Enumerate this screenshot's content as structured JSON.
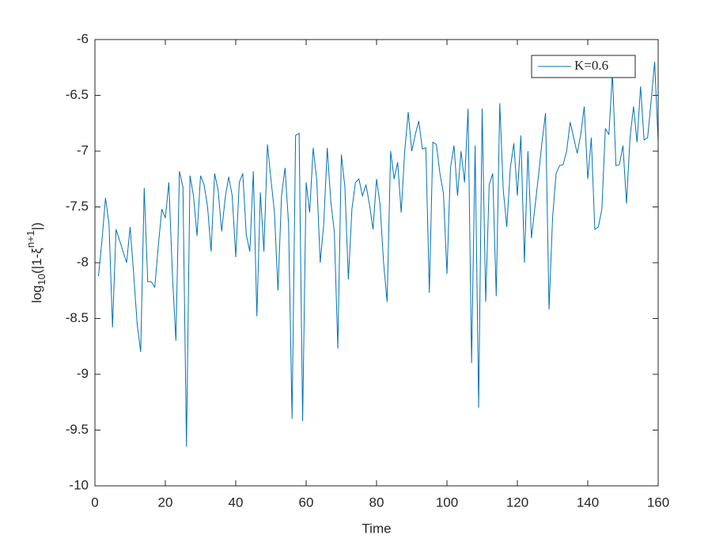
{
  "chart_data": {
    "type": "line",
    "xlabel": "Time",
    "ylabel": {
      "base": "log",
      "sub": "10",
      "main": "(|1-ξ",
      "sup": "n+1",
      "end": "|)"
    },
    "x": [
      1,
      2,
      3,
      4,
      5,
      6,
      7,
      8,
      9,
      10,
      11,
      12,
      13,
      14,
      15,
      16,
      17,
      18,
      19,
      20,
      21,
      22,
      23,
      24,
      25,
      26,
      27,
      28,
      29,
      30,
      31,
      32,
      33,
      34,
      35,
      36,
      37,
      38,
      39,
      40,
      41,
      42,
      43,
      44,
      45,
      46,
      47,
      48,
      49,
      50,
      51,
      52,
      53,
      54,
      55,
      56,
      57,
      58,
      59,
      60,
      61,
      62,
      63,
      64,
      65,
      66,
      67,
      68,
      69,
      70,
      71,
      72,
      73,
      74,
      75,
      76,
      77,
      78,
      79,
      80,
      81,
      82,
      83,
      84,
      85,
      86,
      87,
      88,
      89,
      90,
      91,
      92,
      93,
      94,
      95,
      96,
      97,
      98,
      99,
      100,
      101,
      102,
      103,
      104,
      105,
      106,
      107,
      108,
      109,
      110,
      111,
      112,
      113,
      114,
      115,
      116,
      117,
      118,
      119,
      120,
      121,
      122,
      123,
      124,
      125,
      126,
      127,
      128,
      129,
      130,
      131,
      132,
      133,
      134,
      135,
      136,
      137,
      138,
      139,
      140,
      141,
      142,
      143,
      144,
      145,
      146,
      147,
      148,
      149,
      150,
      151,
      152,
      153,
      154,
      155,
      156,
      157,
      158,
      159,
      160
    ],
    "series": [
      {
        "name": "K=0.6",
        "color": "#0072BD",
        "values": [
          -8.12,
          -7.8,
          -7.42,
          -7.65,
          -8.58,
          -7.7,
          -7.8,
          -7.9,
          -8.0,
          -7.68,
          -8.1,
          -8.55,
          -8.8,
          -7.33,
          -8.17,
          -8.17,
          -8.22,
          -7.85,
          -7.52,
          -7.6,
          -7.28,
          -8.1,
          -8.7,
          -7.18,
          -7.32,
          -9.65,
          -7.22,
          -7.4,
          -7.76,
          -7.22,
          -7.3,
          -7.5,
          -7.9,
          -7.2,
          -7.35,
          -7.72,
          -7.42,
          -7.23,
          -7.4,
          -7.95,
          -7.28,
          -7.2,
          -7.75,
          -7.9,
          -7.18,
          -8.48,
          -7.37,
          -7.9,
          -6.94,
          -7.25,
          -7.55,
          -8.25,
          -7.4,
          -7.15,
          -7.65,
          -9.4,
          -6.86,
          -6.84,
          -9.42,
          -7.28,
          -7.55,
          -6.97,
          -7.25,
          -8.0,
          -7.65,
          -6.97,
          -7.45,
          -7.72,
          -8.77,
          -7.03,
          -7.32,
          -8.15,
          -7.52,
          -7.28,
          -7.25,
          -7.4,
          -7.3,
          -7.48,
          -7.7,
          -7.25,
          -7.48,
          -8.0,
          -8.35,
          -7.0,
          -7.25,
          -7.1,
          -7.55,
          -7.0,
          -6.65,
          -7.0,
          -6.85,
          -6.73,
          -6.98,
          -6.97,
          -8.27,
          -6.92,
          -6.94,
          -7.2,
          -7.38,
          -8.1,
          -7.15,
          -6.95,
          -7.4,
          -7.0,
          -7.28,
          -6.62,
          -8.9,
          -6.95,
          -9.3,
          -6.62,
          -8.35,
          -7.3,
          -7.2,
          -8.3,
          -6.57,
          -7.35,
          -7.68,
          -7.15,
          -6.93,
          -7.4,
          -6.86,
          -8.0,
          -7.0,
          -7.78,
          -7.5,
          -7.22,
          -6.92,
          -6.66,
          -8.42,
          -7.6,
          -7.2,
          -7.13,
          -7.12,
          -7.0,
          -6.74,
          -6.88,
          -7.02,
          -6.85,
          -6.6,
          -7.25,
          -6.88,
          -7.7,
          -7.68,
          -7.52,
          -6.8,
          -6.85,
          -6.3,
          -7.13,
          -7.12,
          -6.95,
          -7.47,
          -6.88,
          -6.6,
          -6.92,
          -6.42,
          -6.9,
          -6.88,
          -6.55,
          -6.2,
          -6.92
        ]
      }
    ],
    "xlim": [
      0,
      160
    ],
    "xticks": [
      0,
      20,
      40,
      60,
      80,
      100,
      120,
      140,
      160
    ],
    "ylim": [
      -10,
      -6
    ],
    "yticks": [
      -10,
      -9.5,
      -9,
      -8.5,
      -8,
      -7.5,
      -7,
      -6.5,
      -6
    ],
    "legend": "top-right",
    "grid": false
  }
}
